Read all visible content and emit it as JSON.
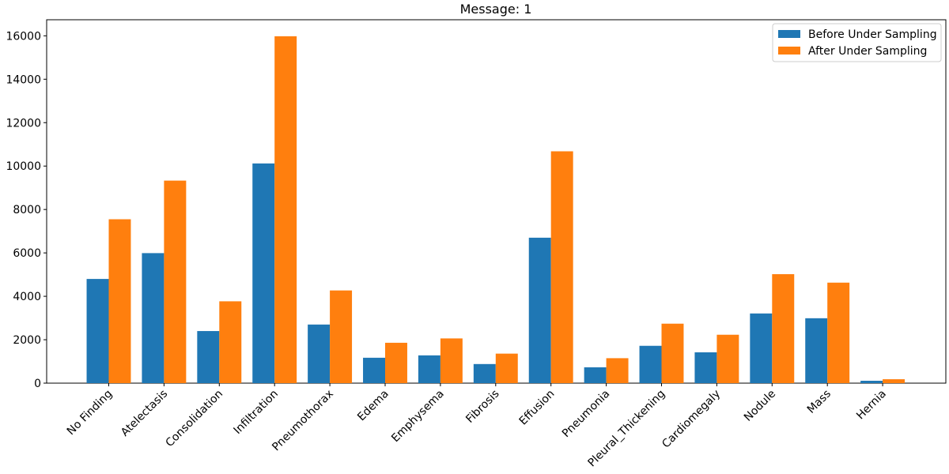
{
  "chart_data": {
    "type": "bar",
    "title": "Message: 1",
    "xlabel": "",
    "ylabel": "",
    "categories": [
      "No Finding",
      "Atelectasis",
      "Consolidation",
      "Infiltration",
      "Pneumothorax",
      "Edema",
      "Emphysema",
      "Fibrosis",
      "Effusion",
      "Pneumonia",
      "Pleural_Thickening",
      "Cardiomegaly",
      "Nodule",
      "Mass",
      "Hernia"
    ],
    "series": [
      {
        "name": "Before Under Sampling",
        "color": "#1f77b4",
        "values": [
          4800,
          5990,
          2400,
          10120,
          2700,
          1170,
          1280,
          880,
          6700,
          730,
          1720,
          1420,
          3210,
          2990,
          110
        ]
      },
      {
        "name": "After Under Sampling",
        "color": "#ff7f0e",
        "values": [
          7550,
          9330,
          3770,
          15980,
          4270,
          1860,
          2060,
          1360,
          10680,
          1150,
          2740,
          2230,
          5020,
          4630,
          180
        ]
      }
    ],
    "ylim": [
      0,
      16740
    ],
    "yticks": [
      0,
      2000,
      4000,
      6000,
      8000,
      10000,
      12000,
      14000,
      16000
    ],
    "grid": false,
    "legend_position": "top-right"
  }
}
